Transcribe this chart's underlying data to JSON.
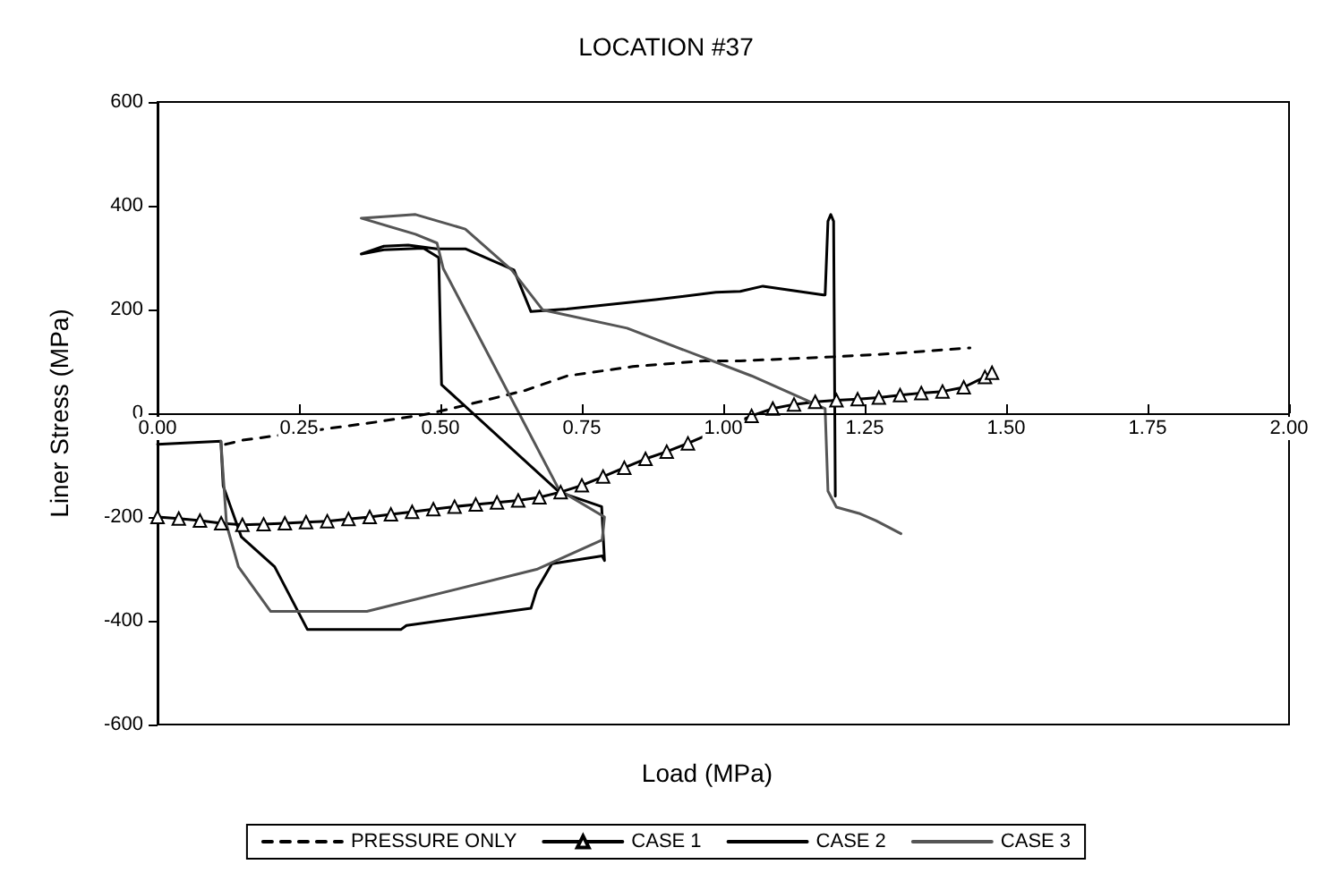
{
  "chart_data": {
    "type": "line",
    "title": "LOCATION #37",
    "xlabel": "Load (MPa)",
    "ylabel": "Liner Stress (MPa)",
    "xlim": [
      0,
      2
    ],
    "xticks": [
      {
        "value": 0,
        "label": "0.00"
      },
      0.25,
      {
        "value": 0.5,
        "label": "0.50"
      },
      0.75,
      {
        "value": 1,
        "label": "1.00"
      },
      1.25,
      {
        "value": 1.5,
        "label": "1.50"
      },
      1.75,
      {
        "value": 2,
        "label": "2.00"
      }
    ],
    "ylim": [
      -600,
      600
    ],
    "yticks": [
      -600,
      -400,
      -200,
      0,
      200,
      400,
      600
    ],
    "grid": false,
    "legend": "bottom",
    "series": [
      {
        "name": "PRESSURE ONLY",
        "color": "#000000",
        "line_style": "dashed",
        "marker": "none",
        "x": [
          0.12,
          0.15,
          0.386,
          0.48,
          0.565,
          0.65,
          0.724,
          0.84,
          0.966,
          1.03,
          1.2,
          1.3,
          1.436
        ],
        "values": [
          -60,
          -52,
          -17,
          -1,
          21,
          44,
          72,
          90,
          101,
          101,
          109,
          115,
          126
        ]
      },
      {
        "name": "CASE 1",
        "color": "#000000",
        "line_style": "solid",
        "marker": "triangle",
        "x": [
          0,
          0.0375,
          0.075,
          0.1125,
          0.15,
          0.1875,
          0.225,
          0.2625,
          0.3,
          0.3375,
          0.375,
          0.4125,
          0.45,
          0.4875,
          0.525,
          0.5625,
          0.6,
          0.6375,
          0.675,
          0.7125,
          0.75,
          0.7875,
          0.825,
          0.8625,
          0.9,
          0.9375,
          1.05,
          1.0875,
          1.125,
          1.1625,
          1.2,
          1.2375,
          1.275,
          1.3125,
          1.35,
          1.3875,
          1.425,
          1.4625,
          1.475
        ],
        "values": [
          -200,
          -203,
          -207,
          -212,
          -215,
          -214,
          -212,
          -210,
          -208,
          -204,
          -200,
          -195,
          -190,
          -185,
          -180,
          -176,
          -172,
          -168,
          -162,
          -152,
          -139,
          -122,
          -105,
          -88,
          -74,
          -58,
          -5,
          9,
          17,
          22,
          25,
          27,
          30,
          35,
          39,
          42,
          50,
          70,
          78
        ]
      },
      {
        "name": "CASE 2",
        "color": "#000000",
        "line_style": "solid",
        "marker": "none",
        "x": [
          0,
          0.112,
          0.116,
          0.148,
          0.207,
          0.265,
          0.43,
          0.44,
          0.66,
          0.67,
          0.697,
          0.786,
          0.79,
          0.785,
          0.71,
          0.502,
          0.497,
          0.47,
          0.4,
          0.36,
          0.4,
          0.443,
          0.494,
          0.544,
          0.63,
          0.66,
          0.723,
          0.88,
          0.987,
          1.03,
          1.07,
          1.177,
          1.18,
          1.185,
          1.19,
          1.195,
          1.198
        ],
        "values": [
          -60,
          -54,
          -140,
          -238,
          -296,
          -417,
          -417,
          -409,
          -376,
          -341,
          -290,
          -275,
          -284,
          -180,
          -152,
          55,
          300,
          318,
          315,
          307,
          322,
          324,
          317,
          317,
          276,
          196,
          201,
          219,
          233,
          235,
          245,
          228,
          228,
          370,
          383,
          370,
          -160
        ]
      },
      {
        "name": "CASE 3",
        "color": "#555555",
        "line_style": "solid",
        "marker": "none",
        "x": [
          0.112,
          0.122,
          0.143,
          0.2,
          0.37,
          0.67,
          0.786,
          0.79,
          0.71,
          0.505,
          0.494,
          0.456,
          0.36,
          0.456,
          0.544,
          0.626,
          0.681,
          0.83,
          0.966,
          1.05,
          1.145,
          1.18,
          1.185,
          1.2,
          1.24,
          1.27,
          1.314
        ],
        "values": [
          -54,
          -215,
          -296,
          -382,
          -382,
          -301,
          -244,
          -200,
          -148,
          279,
          328,
          345,
          376,
          383,
          355,
          276,
          199,
          164,
          107,
          72,
          26,
          9,
          -150,
          -181,
          -193,
          -207,
          -232
        ]
      }
    ]
  }
}
